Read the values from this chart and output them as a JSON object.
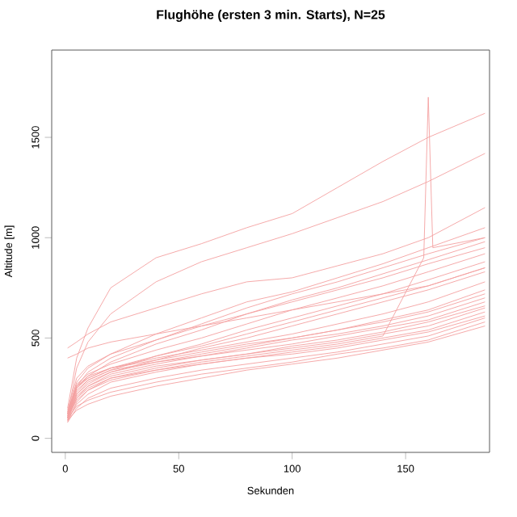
{
  "chart_data": {
    "type": "line",
    "title": "Flughöhe (ersten 3 min. Starts), N=25",
    "xlabel": "Sekunden",
    "ylabel": "Altitude [m]",
    "x": [
      1,
      5,
      10,
      20,
      40,
      60,
      80,
      100,
      120,
      140,
      160,
      185
    ],
    "xlim": [
      -6,
      187
    ],
    "ylim": [
      -70,
      1935
    ],
    "xticks": [
      0,
      50,
      100,
      150
    ],
    "yticks": [
      0,
      500,
      1000,
      1500
    ],
    "grid": false,
    "marker": "none",
    "line_style": "solid",
    "series": [
      {
        "color": "#f4a0a0",
        "values": [
          150,
          400,
          550,
          750,
          900,
          970,
          1050,
          1120,
          1250,
          1380,
          1500,
          1620
        ]
      },
      {
        "color": "#f4a0a0",
        "values": [
          120,
          350,
          480,
          620,
          780,
          880,
          950,
          1020,
          1100,
          1180,
          1280,
          1420
        ]
      },
      {
        "color": "#f4a0a0",
        "values": [
          450,
          480,
          520,
          580,
          650,
          720,
          780,
          800,
          860,
          920,
          1000,
          1150
        ]
      },
      {
        "color": "#f4a0a0",
        "values": [
          130,
          280,
          350,
          420,
          520,
          600,
          680,
          730,
          800,
          870,
          950,
          1050
        ]
      },
      {
        "color": "#f4a0a0",
        "values": [
          110,
          260,
          330,
          400,
          490,
          570,
          650,
          720,
          780,
          850,
          920,
          1000
        ]
      },
      {
        "color": "#f4a0a0",
        "values": [
          100,
          250,
          310,
          380,
          470,
          540,
          620,
          690,
          750,
          820,
          890,
          980
        ]
      },
      {
        "color": "#f4a0a0",
        "values": [
          140,
          300,
          360,
          420,
          490,
          560,
          620,
          680,
          740,
          800,
          870,
          950
        ]
      },
      {
        "color": "#f4a0a0",
        "values": [
          120,
          270,
          320,
          370,
          440,
          500,
          570,
          640,
          700,
          760,
          830,
          920
        ]
      },
      {
        "color": "#f4a0a0",
        "values": [
          100,
          240,
          290,
          340,
          410,
          470,
          540,
          600,
          660,
          720,
          790,
          880
        ]
      },
      {
        "color": "#f4a0a0",
        "values": [
          130,
          260,
          310,
          350,
          410,
          460,
          520,
          580,
          640,
          700,
          760,
          850
        ]
      },
      {
        "color": "#f4a0a0",
        "values": [
          90,
          220,
          270,
          330,
          390,
          450,
          500,
          560,
          620,
          680,
          740,
          830
        ]
      },
      {
        "color": "#f4a0a0",
        "values": [
          110,
          250,
          300,
          350,
          400,
          440,
          480,
          520,
          570,
          620,
          680,
          780
        ]
      },
      {
        "color": "#f4a0a0",
        "values": [
          100,
          230,
          290,
          340,
          380,
          420,
          460,
          500,
          540,
          590,
          640,
          740
        ]
      },
      {
        "color": "#f4a0a0",
        "values": [
          120,
          260,
          300,
          350,
          390,
          430,
          470,
          500,
          540,
          580,
          630,
          720
        ]
      },
      {
        "color": "#f4a0a0",
        "values": [
          90,
          200,
          260,
          320,
          370,
          410,
          450,
          490,
          520,
          560,
          610,
          700
        ]
      },
      {
        "color": "#f4a0a0",
        "values": [
          100,
          220,
          280,
          330,
          380,
          410,
          440,
          470,
          510,
          550,
          590,
          680
        ]
      },
      {
        "color": "#f4a0a0",
        "values": [
          80,
          180,
          240,
          300,
          350,
          390,
          420,
          460,
          490,
          530,
          580,
          660
        ]
      },
      {
        "color": "#f4a0a0",
        "values": [
          110,
          210,
          260,
          310,
          360,
          390,
          420,
          450,
          480,
          520,
          560,
          650
        ]
      },
      {
        "color": "#f4a0a0",
        "values": [
          90,
          170,
          220,
          280,
          330,
          370,
          400,
          430,
          460,
          500,
          540,
          630
        ]
      },
      {
        "color": "#f4a0a0",
        "values": [
          100,
          190,
          240,
          290,
          340,
          370,
          400,
          420,
          450,
          490,
          530,
          610
        ]
      },
      {
        "color": "#f4a0a0",
        "values": [
          80,
          150,
          200,
          250,
          300,
          340,
          370,
          400,
          430,
          470,
          510,
          600
        ]
      },
      {
        "color": "#f4a0a0",
        "values": [
          100,
          160,
          190,
          230,
          280,
          320,
          350,
          380,
          420,
          450,
          490,
          580
        ]
      },
      {
        "color": "#f4a0a0",
        "values": [
          90,
          140,
          170,
          210,
          260,
          300,
          340,
          370,
          400,
          440,
          480,
          560
        ]
      },
      {
        "color": "#f4a0a0",
        "x": [
          1,
          5,
          10,
          20,
          40,
          60,
          80,
          100,
          120,
          140,
          158,
          160,
          162,
          185
        ],
        "values": [
          110,
          200,
          250,
          300,
          340,
          380,
          410,
          440,
          470,
          510,
          900,
          1700,
          950,
          1000
        ]
      },
      {
        "color": "#f4a0a0",
        "values": [
          400,
          420,
          450,
          480,
          520,
          560,
          600,
          640,
          680,
          720,
          760,
          850
        ]
      }
    ]
  }
}
